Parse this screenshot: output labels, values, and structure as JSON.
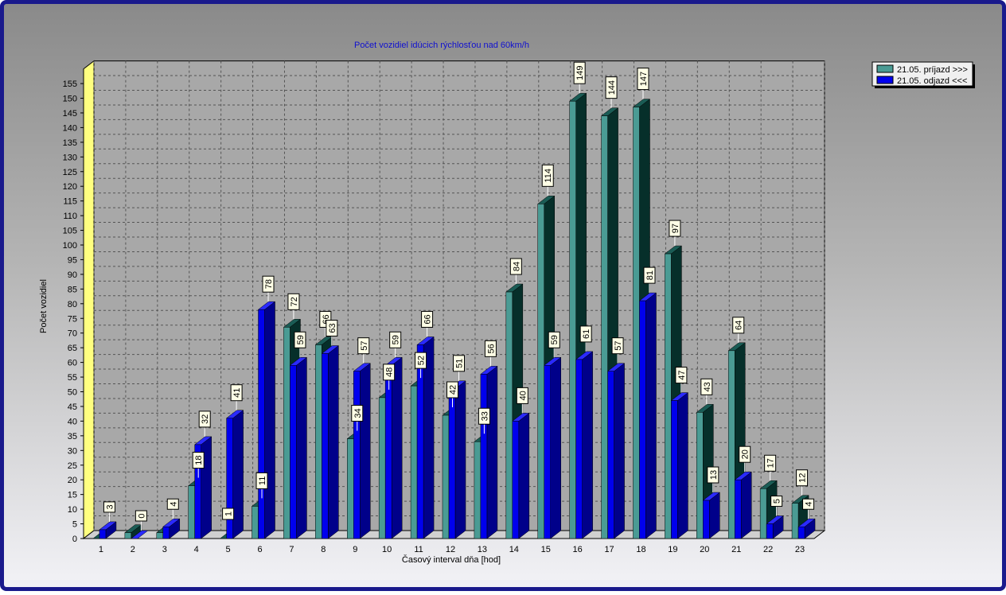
{
  "chart_data": {
    "type": "bar",
    "title": "Počet vozidiel idúcich rýchlosťou nad 60km/h",
    "xlabel": "Časový interval dňa [hod]",
    "ylabel": "Počet vozidiel",
    "ylim": [
      0,
      160
    ],
    "y_ticks": [
      0,
      5,
      10,
      15,
      20,
      25,
      30,
      35,
      40,
      45,
      50,
      55,
      60,
      65,
      70,
      75,
      80,
      85,
      90,
      95,
      100,
      105,
      110,
      115,
      120,
      125,
      130,
      135,
      140,
      145,
      150,
      155
    ],
    "grid": true,
    "legend_position": "top-right",
    "categories": [
      "1",
      "2",
      "3",
      "4",
      "5",
      "6",
      "7",
      "8",
      "9",
      "10",
      "11",
      "12",
      "13",
      "14",
      "15",
      "16",
      "17",
      "18",
      "19",
      "20",
      "21",
      "22",
      "23"
    ],
    "series": [
      {
        "name": "21.05. príjazd >>>",
        "color": "#4a9b94",
        "values": [
          0,
          2,
          2,
          18,
          0,
          11,
          72,
          66,
          34,
          48,
          52,
          42,
          33,
          84,
          114,
          149,
          144,
          147,
          97,
          43,
          64,
          17,
          12
        ]
      },
      {
        "name": "21.05. odjazd <<<",
        "color": "#0000ee",
        "values": [
          3,
          0,
          4,
          32,
          41,
          78,
          59,
          63,
          57,
          59,
          66,
          51,
          56,
          40,
          59,
          61,
          57,
          81,
          47,
          13,
          20,
          5,
          4
        ]
      }
    ],
    "data_labels": [
      [
        "",
        "",
        "",
        "18",
        "",
        "11",
        "72",
        "66",
        "34",
        "48",
        "52",
        "42",
        "33",
        "84",
        "114",
        "149",
        "144",
        "147",
        "97",
        "43",
        "64",
        "17",
        "12"
      ],
      [
        "3",
        "0",
        "4",
        "32",
        "41",
        "78",
        "59",
        "63",
        "57",
        "59",
        "66",
        "51",
        "56",
        "40",
        "59",
        "61",
        "57",
        "81",
        "47",
        "13",
        "20",
        "5",
        "4"
      ]
    ],
    "hidden_label": "1"
  }
}
